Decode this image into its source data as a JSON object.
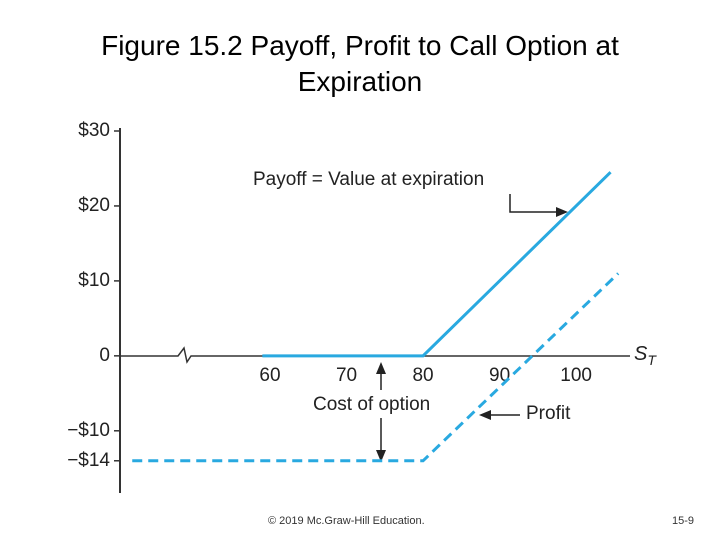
{
  "chart_data": {
    "type": "line",
    "title": "Figure 15.2 Payoff, Profit to Call Option at Expiration",
    "x_label": {
      "main": "S",
      "sub": "T"
    },
    "xlim": [
      40.4,
      107.3
    ],
    "xticks": [
      60,
      70,
      80,
      90,
      100
    ],
    "ylim": [
      -18.3,
      30
    ],
    "yticks": [
      {
        "value": 30,
        "label": "$30"
      },
      {
        "value": 20,
        "label": "$20"
      },
      {
        "value": 10,
        "label": "$10"
      },
      0,
      {
        "value": -10,
        "label": "−$10"
      },
      {
        "value": -14,
        "label": "−$14"
      }
    ],
    "grid": false,
    "series": [
      {
        "name": "Payoff",
        "color": "#29a9e0",
        "dash": false,
        "x": [
          59,
          80,
          104.5
        ],
        "values": [
          0,
          0,
          24.5
        ]
      },
      {
        "name": "Profit",
        "color": "#29a9e0",
        "dash": true,
        "x": [
          42,
          80,
          105.5
        ],
        "values": [
          -14,
          -14,
          11
        ]
      }
    ],
    "annotations": [
      "Payoff = Value at expiration",
      "Cost of option",
      "Profit"
    ]
  },
  "footer": {
    "copyright": "© 2019 Mc.Graw-Hill Education.",
    "page": "15-9"
  }
}
